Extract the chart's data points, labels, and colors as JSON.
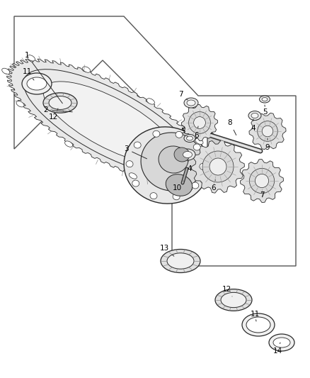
{
  "background_color": "#ffffff",
  "line_color": "#2a2a2a",
  "label_color": "#000000",
  "label_fontsize": 7.5,
  "fig_width": 4.38,
  "fig_height": 5.33,
  "dpi": 100,
  "polygon_color": "#555555",
  "part_fill": "#f0f0f0",
  "part_fill2": "#e0e0e0",
  "part_fill3": "#c8c8c8",
  "gear_stripe": "#888888"
}
